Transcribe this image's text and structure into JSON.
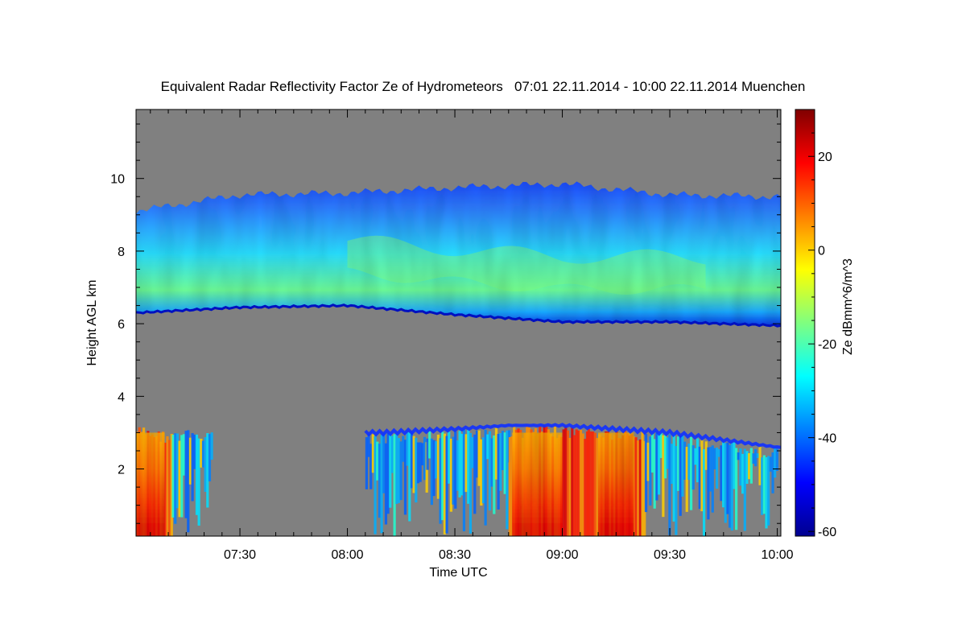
{
  "chart_data": {
    "type": "heatmap",
    "title": "Equivalent Radar Reflectivity Factor Ze of Hydrometeors   07:01 22.11.2014 - 10:00 22.11.2014 Muenchen",
    "xlabel": "Time UTC",
    "ylabel": "Height AGL km",
    "colorbar_label": "Ze dBmm^6/m^3",
    "xlim": [
      "07:01",
      "10:01"
    ],
    "ylim": [
      0.15,
      11.9
    ],
    "x_ticks": [
      "07:30",
      "08:00",
      "08:30",
      "09:00",
      "09:30",
      "10:00"
    ],
    "y_ticks": [
      2,
      4,
      6,
      8,
      10
    ],
    "colorbar_range": [
      -61,
      30
    ],
    "colorbar_ticks": [
      20,
      0,
      -20,
      -40,
      -60
    ],
    "colormap": "jet",
    "no_data_color": "#808080",
    "layers": [
      {
        "name": "",
        "kind": "cirrus",
        "time": [
          "07:01",
          "07:30",
          "08:00",
          "08:30",
          "09:00",
          "09:30",
          "10:00"
        ],
        "base_km": [
          6.3,
          6.45,
          6.5,
          6.25,
          6.05,
          6.05,
          5.95
        ],
        "top_km": [
          9.1,
          9.55,
          9.6,
          9.75,
          9.85,
          9.55,
          9.5
        ],
        "peak_ze": -20
      },
      {
        "name": "",
        "kind": "precipitation",
        "time": [
          "07:01",
          "07:12",
          "08:10",
          "08:30",
          "08:45",
          "09:00",
          "09:15",
          "09:30",
          "10:00"
        ],
        "top_km": [
          3.2,
          3.0,
          3.0,
          3.1,
          3.2,
          3.2,
          3.1,
          3.0,
          2.6
        ],
        "peak_ze": 25
      }
    ]
  }
}
